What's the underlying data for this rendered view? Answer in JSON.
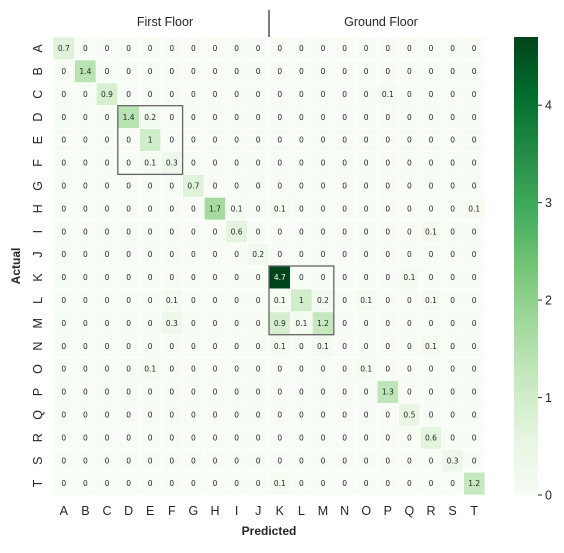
{
  "chart_data": {
    "type": "heatmap",
    "xlabel": "Predicted",
    "ylabel": "Actual",
    "x_categories": [
      "A",
      "B",
      "C",
      "D",
      "E",
      "F",
      "G",
      "H",
      "I",
      "J",
      "K",
      "L",
      "M",
      "N",
      "O",
      "P",
      "Q",
      "R",
      "S",
      "T"
    ],
    "y_categories": [
      "A",
      "B",
      "C",
      "D",
      "E",
      "F",
      "G",
      "H",
      "I",
      "J",
      "K",
      "L",
      "M",
      "N",
      "O",
      "P",
      "Q",
      "R",
      "S",
      "T"
    ],
    "group_labels": [
      "First Floor",
      "Ground Floor"
    ],
    "values": [
      [
        0.7,
        0,
        0,
        0,
        0,
        0,
        0,
        0,
        0,
        0,
        0,
        0,
        0,
        0,
        0,
        0,
        0,
        0,
        0,
        0
      ],
      [
        0,
        1.4,
        0,
        0,
        0,
        0,
        0,
        0,
        0,
        0,
        0,
        0,
        0,
        0,
        0,
        0,
        0,
        0,
        0,
        0
      ],
      [
        0,
        0,
        0.9,
        0,
        0,
        0,
        0,
        0,
        0,
        0,
        0,
        0,
        0,
        0,
        0,
        0.1,
        0,
        0,
        0,
        0
      ],
      [
        0,
        0,
        0,
        1.4,
        0.2,
        0,
        0,
        0,
        0,
        0,
        0,
        0,
        0,
        0,
        0,
        0,
        0,
        0,
        0,
        0
      ],
      [
        0,
        0,
        0,
        0,
        1,
        0,
        0,
        0,
        0,
        0,
        0,
        0,
        0,
        0,
        0,
        0,
        0,
        0,
        0,
        0
      ],
      [
        0,
        0,
        0,
        0,
        0.1,
        0.3,
        0,
        0,
        0,
        0,
        0,
        0,
        0,
        0,
        0,
        0,
        0,
        0,
        0,
        0
      ],
      [
        0,
        0,
        0,
        0,
        0,
        0,
        0.7,
        0,
        0,
        0,
        0,
        0,
        0,
        0,
        0,
        0,
        0,
        0,
        0,
        0
      ],
      [
        0,
        0,
        0,
        0,
        0,
        0,
        0,
        1.7,
        0.1,
        0,
        0.1,
        0,
        0,
        0,
        0,
        0,
        0,
        0,
        0,
        0.1
      ],
      [
        0,
        0,
        0,
        0,
        0,
        0,
        0,
        0,
        0.6,
        0,
        0,
        0,
        0,
        0,
        0,
        0,
        0,
        0.1,
        0,
        0
      ],
      [
        0,
        0,
        0,
        0,
        0,
        0,
        0,
        0,
        0,
        0.2,
        0,
        0,
        0,
        0,
        0,
        0,
        0,
        0,
        0,
        0
      ],
      [
        0,
        0,
        0,
        0,
        0,
        0,
        0,
        0,
        0,
        0,
        4.7,
        0,
        0,
        0,
        0,
        0,
        0.1,
        0,
        0,
        0
      ],
      [
        0,
        0,
        0,
        0,
        0,
        0.1,
        0,
        0,
        0,
        0,
        0.1,
        1,
        0.2,
        0,
        0.1,
        0,
        0,
        0.1,
        0,
        0
      ],
      [
        0,
        0,
        0,
        0,
        0,
        0.3,
        0,
        0,
        0,
        0,
        0.9,
        0.1,
        1.2,
        0,
        0,
        0,
        0,
        0,
        0,
        0
      ],
      [
        0,
        0,
        0,
        0,
        0,
        0,
        0,
        0,
        0,
        0,
        0.1,
        0,
        0.1,
        0,
        0,
        0,
        0,
        0.1,
        0,
        0
      ],
      [
        0,
        0,
        0,
        0,
        0.1,
        0,
        0,
        0,
        0,
        0,
        0,
        0,
        0,
        0,
        0.1,
        0,
        0,
        0,
        0,
        0
      ],
      [
        0,
        0,
        0,
        0,
        0,
        0,
        0,
        0,
        0,
        0,
        0,
        0,
        0,
        0,
        0,
        1.3,
        0,
        0,
        0,
        0
      ],
      [
        0,
        0,
        0,
        0,
        0,
        0,
        0,
        0,
        0,
        0,
        0,
        0,
        0,
        0,
        0,
        0,
        0.5,
        0,
        0,
        0
      ],
      [
        0,
        0,
        0,
        0,
        0,
        0,
        0,
        0,
        0,
        0,
        0,
        0,
        0,
        0,
        0,
        0,
        0,
        0.6,
        0,
        0
      ],
      [
        0,
        0,
        0,
        0,
        0,
        0,
        0,
        0,
        0,
        0,
        0,
        0,
        0,
        0,
        0,
        0,
        0,
        0,
        0.3,
        0
      ],
      [
        0,
        0,
        0,
        0,
        0,
        0,
        0,
        0,
        0,
        0,
        0.1,
        0,
        0,
        0,
        0,
        0,
        0,
        0,
        0,
        1.2
      ]
    ],
    "highlight_boxes": [
      {
        "rows": [
          3,
          5
        ],
        "cols": [
          3,
          5
        ]
      },
      {
        "rows": [
          10,
          12
        ],
        "cols": [
          10,
          12
        ]
      }
    ],
    "colorbar": {
      "min": 0,
      "max": 4.7,
      "ticks": [
        0,
        1,
        2,
        3,
        4
      ],
      "colormap": "Greens",
      "low_color": "#f7fcf5",
      "high_color": "#00441b"
    },
    "grid": false
  }
}
